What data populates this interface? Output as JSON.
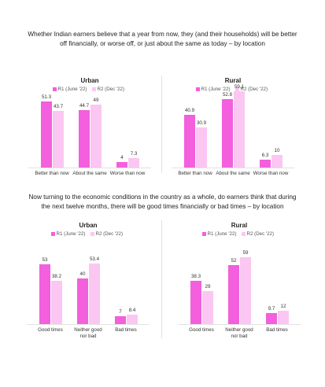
{
  "headings": [
    "Whether Indian earners believe that a year from now, they (and their households) will be better off financially, or worse off, or just about the same as today – by location",
    "Now turning to the economic conditions in the country as a whole, do earners think that during the next twelve months, there will be good times financially or bad times – by location"
  ],
  "chart_data": [
    {
      "type": "bar",
      "title": "Urban",
      "categories": [
        "Better than now",
        "About the same",
        "Worse than now"
      ],
      "series": [
        {
          "name": "R1 (June '22)",
          "color": "#f35fdc",
          "values": [
            51.3,
            44.7,
            4
          ]
        },
        {
          "name": "R2 (Dec '22)",
          "color": "#fbc6f1",
          "values": [
            43.7,
            49,
            7.3
          ]
        }
      ]
    },
    {
      "type": "bar",
      "title": "Rural",
      "categories": [
        "Better than now",
        "About the same",
        "Worse than now"
      ],
      "series": [
        {
          "name": "R1 (June '22)",
          "color": "#f35fdc",
          "values": [
            40.9,
            52.8,
            6.3
          ]
        },
        {
          "name": "R2 (Dec '22)",
          "color": "#fbc6f1",
          "values": [
            30.9,
            59.1,
            10
          ]
        }
      ]
    },
    {
      "type": "bar",
      "title": "Urban",
      "categories": [
        "Good times",
        "Neither good nor bad",
        "Bad times"
      ],
      "series": [
        {
          "name": "R1 (June '22)",
          "color": "#f35fdc",
          "values": [
            53,
            40,
            7
          ]
        },
        {
          "name": "R2 (Dec '22)",
          "color": "#fbc6f1",
          "values": [
            38.2,
            53.4,
            8.4
          ]
        }
      ]
    },
    {
      "type": "bar",
      "title": "Rural",
      "categories": [
        "Good times",
        "Neither good nor bad",
        "Bad times"
      ],
      "series": [
        {
          "name": "R1 (June '22)",
          "color": "#f35fdc",
          "values": [
            38.3,
            52,
            9.7
          ]
        },
        {
          "name": "R2 (Dec '22)",
          "color": "#fbc6f1",
          "values": [
            29,
            59,
            12
          ]
        }
      ]
    }
  ]
}
